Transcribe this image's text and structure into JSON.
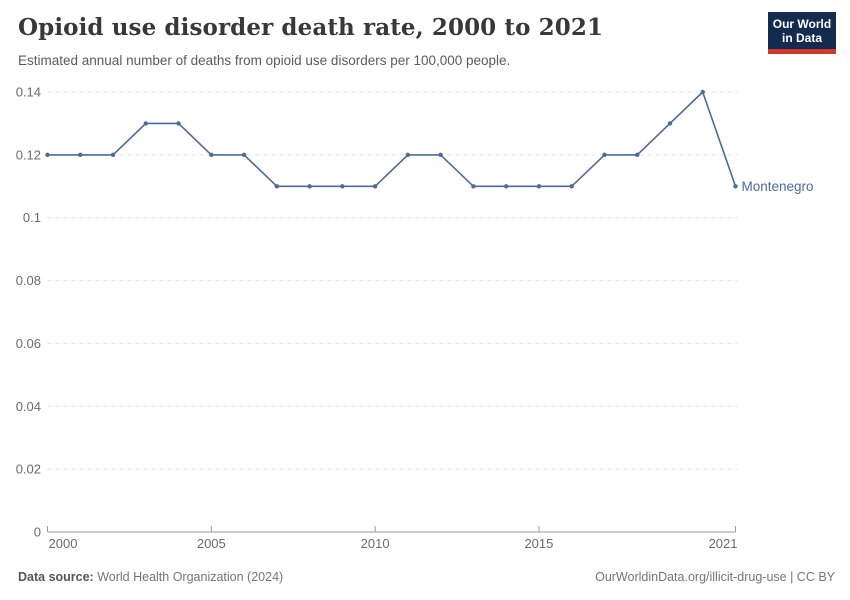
{
  "header": {
    "title": "Opioid use disorder death rate, 2000 to 2021",
    "subtitle": "Estimated annual number of deaths from opioid use disorders per 100,000 people.",
    "logo": {
      "line1": "Our World",
      "line2": "in Data",
      "bg_color": "#122b4e",
      "accent_color": "#d23a2c"
    }
  },
  "chart_data": {
    "type": "line",
    "title": "Opioid use disorder death rate, 2000 to 2021",
    "xlabel": "",
    "ylabel": "",
    "x": [
      2000,
      2001,
      2002,
      2003,
      2004,
      2005,
      2006,
      2007,
      2008,
      2009,
      2010,
      2011,
      2012,
      2013,
      2014,
      2015,
      2016,
      2017,
      2018,
      2019,
      2020,
      2021
    ],
    "series": [
      {
        "name": "Montenegro",
        "color": "#4c6a9c",
        "values": [
          0.12,
          0.12,
          0.12,
          0.13,
          0.13,
          0.12,
          0.12,
          0.11,
          0.11,
          0.11,
          0.11,
          0.12,
          0.12,
          0.11,
          0.11,
          0.11,
          0.11,
          0.12,
          0.12,
          0.13,
          0.14,
          0.11
        ]
      }
    ],
    "xlim": [
      2000,
      2021
    ],
    "ylim": [
      0,
      0.14
    ],
    "xticks": [
      {
        "value": 2000,
        "label": "2000"
      },
      {
        "value": 2005,
        "label": "2005"
      },
      {
        "value": 2010,
        "label": "2010"
      },
      {
        "value": 2015,
        "label": "2015"
      },
      {
        "value": 2021,
        "label": "2021"
      }
    ],
    "yticks": [
      {
        "value": 0,
        "label": "0"
      },
      {
        "value": 0.02,
        "label": "0.02"
      },
      {
        "value": 0.04,
        "label": "0.04"
      },
      {
        "value": 0.06,
        "label": "0.06"
      },
      {
        "value": 0.08,
        "label": "0.08"
      },
      {
        "value": 0.1,
        "label": "0.1"
      },
      {
        "value": 0.12,
        "label": "0.12"
      },
      {
        "value": 0.14,
        "label": "0.14"
      }
    ],
    "grid": true,
    "grid_color": "#e3e3e3",
    "axis_color": "#9a9a9a",
    "tick_label_color": "#6b6b6b",
    "legend_position": "end-of-line"
  },
  "footer": {
    "datasource_label": "Data source:",
    "datasource_value": " World Health Organization (2024)",
    "credit": "OurWorldinData.org/illicit-drug-use | CC BY"
  }
}
